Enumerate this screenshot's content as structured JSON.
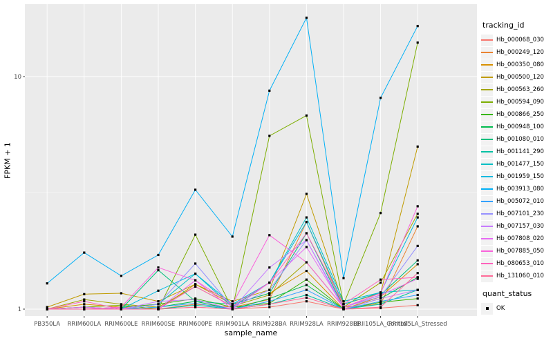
{
  "figure": {
    "y_axis": {
      "title": "FPKM + 1",
      "scale": "log10",
      "tick_labels": [
        "1",
        "10"
      ],
      "tick_values": [
        1,
        10
      ]
    },
    "x_axis": {
      "title": "sample_name"
    },
    "legend": {
      "tracking_title": "tracking_id",
      "quant_title": "quant_status",
      "quant_ok_label": "OK"
    },
    "colors": {
      "panel_background": "#EBEBEB",
      "gridline": "#FFFFFF",
      "marker": "#000000",
      "axis_text": "#4D4D4D",
      "tick_mark": "#333333",
      "legend_key_background": "#F2F2F2"
    }
  },
  "chart_data": {
    "type": "line",
    "title": "",
    "xlabel": "sample_name",
    "ylabel": "FPKM + 1",
    "y_scale": "log10",
    "ylim": [
      0.93,
      20.5
    ],
    "y_major_ticks": [
      1,
      10
    ],
    "y_minor_ticks": [
      3.1623
    ],
    "grid": true,
    "legend_position": "right",
    "marker": {
      "shape": "square",
      "color": "#000000",
      "meaning": "quant_status OK"
    },
    "categories": [
      "PB350LA",
      "RRIM600LA",
      "RRIM600LE",
      "RRIM600SE",
      "RRIM600PE",
      "RRIM901LA",
      "RRIM928BA",
      "RRIM928LA",
      "RRIM928LE",
      "RRII105LA_Control",
      "RRII105LA_Stressed"
    ],
    "series": [
      {
        "name": "Hb_000068_030",
        "color": "#F8766D",
        "values": [
          1.0,
          1.0,
          1.0,
          1.0,
          1.02,
          1.0,
          1.02,
          1.08,
          1.0,
          1.01,
          1.04
        ]
      },
      {
        "name": "Hb_000249_120",
        "color": "#EA8331",
        "values": [
          1.0,
          1.02,
          1.0,
          1.0,
          1.05,
          1.02,
          1.1,
          2.37,
          1.02,
          1.05,
          2.27
        ]
      },
      {
        "name": "Hb_000350_080",
        "color": "#D89000",
        "values": [
          1.0,
          1.05,
          1.02,
          1.0,
          1.28,
          1.05,
          1.17,
          1.46,
          1.0,
          1.13,
          1.56
        ]
      },
      {
        "name": "Hb_000500_120",
        "color": "#C09B00",
        "values": [
          1.02,
          1.16,
          1.17,
          1.08,
          1.28,
          1.08,
          1.21,
          3.13,
          1.05,
          1.17,
          5.0
        ]
      },
      {
        "name": "Hb_000563_260",
        "color": "#A3A500",
        "values": [
          1.0,
          1.1,
          1.05,
          1.02,
          1.25,
          1.03,
          1.15,
          1.59,
          1.02,
          1.3,
          2.57
        ]
      },
      {
        "name": "Hb_000594_090",
        "color": "#7CAE00",
        "values": [
          1.0,
          1.02,
          1.04,
          1.0,
          2.09,
          1.0,
          5.56,
          6.8,
          1.05,
          2.59,
          14.0
        ]
      },
      {
        "name": "Hb_000866_250",
        "color": "#39B600",
        "values": [
          1.0,
          1.0,
          1.02,
          1.05,
          1.11,
          1.02,
          1.06,
          1.34,
          1.0,
          1.07,
          1.11
        ]
      },
      {
        "name": "Hb_000948_100",
        "color": "#00BB4E",
        "values": [
          1.0,
          1.0,
          1.0,
          1.02,
          1.08,
          1.0,
          1.11,
          1.27,
          1.0,
          1.11,
          1.37
        ]
      },
      {
        "name": "Hb_001080_010",
        "color": "#00BF7D",
        "values": [
          1.0,
          1.02,
          1.0,
          1.47,
          1.08,
          1.05,
          1.17,
          2.12,
          1.02,
          1.15,
          1.62
        ]
      },
      {
        "name": "Hb_001141_290",
        "color": "#00C1A3",
        "values": [
          1.0,
          1.0,
          1.0,
          1.0,
          1.04,
          1.0,
          1.05,
          1.15,
          1.0,
          1.05,
          1.21
        ]
      },
      {
        "name": "Hb_001477_150",
        "color": "#00BFC4",
        "values": [
          1.0,
          1.0,
          1.0,
          1.05,
          1.42,
          1.02,
          1.3,
          2.48,
          1.08,
          1.18,
          1.21
        ]
      },
      {
        "name": "Hb_001959_150",
        "color": "#00BAE0",
        "values": [
          1.0,
          1.0,
          1.0,
          1.2,
          1.42,
          1.05,
          1.3,
          2.37,
          1.05,
          1.18,
          2.48
        ]
      },
      {
        "name": "Hb_003913_080",
        "color": "#00B0F6",
        "values": [
          1.29,
          1.75,
          1.39,
          1.71,
          3.26,
          2.05,
          8.7,
          17.9,
          1.36,
          8.1,
          16.5
        ]
      },
      {
        "name": "Hb_005072_010",
        "color": "#35A2FF",
        "values": [
          1.0,
          1.0,
          1.0,
          1.02,
          1.06,
          1.0,
          1.08,
          1.21,
          1.0,
          1.08,
          1.15
        ]
      },
      {
        "name": "Hb_007101_230",
        "color": "#9590FF",
        "values": [
          1.0,
          1.0,
          1.0,
          1.05,
          1.57,
          1.02,
          1.21,
          1.98,
          1.02,
          1.13,
          1.87
        ]
      },
      {
        "name": "Hb_007157_030",
        "color": "#C77CFF",
        "values": [
          1.0,
          1.0,
          1.0,
          1.08,
          1.1,
          1.0,
          1.51,
          1.98,
          1.0,
          1.11,
          1.21
        ]
      },
      {
        "name": "Hb_007808_020",
        "color": "#E76BF3",
        "values": [
          1.0,
          1.02,
          1.0,
          1.0,
          1.33,
          1.0,
          1.3,
          1.85,
          1.02,
          1.15,
          1.35
        ]
      },
      {
        "name": "Hb_007885_050",
        "color": "#FA62DB",
        "values": [
          1.0,
          1.0,
          1.02,
          1.51,
          1.33,
          1.05,
          2.08,
          1.59,
          1.02,
          1.17,
          2.77
        ]
      },
      {
        "name": "Hb_080653_010",
        "color": "#FF62BC",
        "values": [
          1.0,
          1.08,
          1.0,
          1.0,
          1.25,
          1.03,
          1.3,
          2.12,
          1.05,
          1.34,
          1.37
        ]
      },
      {
        "name": "Hb_131060_010",
        "color": "#FF6A98",
        "values": [
          1.0,
          1.0,
          1.0,
          1.0,
          1.02,
          1.0,
          1.05,
          1.12,
          1.0,
          1.02,
          1.43
        ]
      }
    ]
  }
}
